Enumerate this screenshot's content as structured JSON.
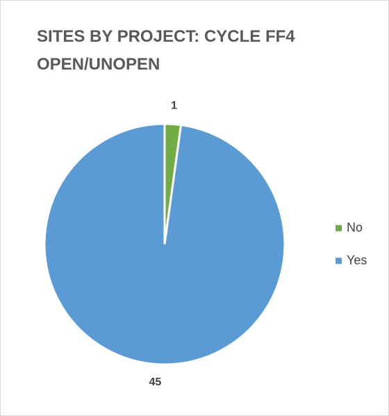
{
  "chart_data": {
    "type": "pie",
    "title": "SITES BY PROJECT: CYCLE FF4 OPEN/UNOPEN",
    "categories": [
      "No",
      "Yes"
    ],
    "values": [
      1,
      45
    ],
    "colors": [
      "#70ad47",
      "#5b9bd5"
    ],
    "legend": "right"
  }
}
